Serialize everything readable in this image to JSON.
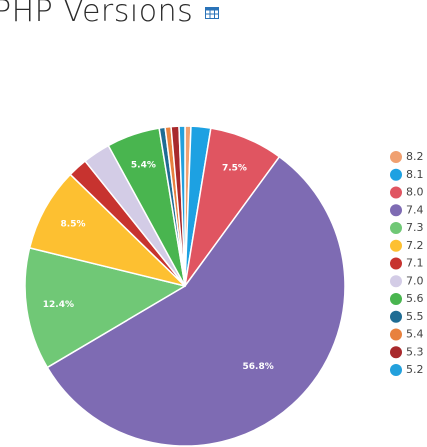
{
  "title": "PHP Versions",
  "chart_data": {
    "type": "pie",
    "start_angle_deg": 0,
    "direction": "clockwise",
    "slices": [
      {
        "label": "8.2",
        "value": 0.6,
        "color": "#f0a070",
        "data_label": ""
      },
      {
        "label": "8.1",
        "value": 2.0,
        "color": "#1da1e2",
        "data_label": ""
      },
      {
        "label": "8.0",
        "value": 7.5,
        "color": "#e05561",
        "data_label": "7.5%"
      },
      {
        "label": "7.4",
        "value": 56.8,
        "color": "#7e6bb3",
        "data_label": "56.8%"
      },
      {
        "label": "7.3",
        "value": 12.4,
        "color": "#70c876",
        "data_label": "12.4%"
      },
      {
        "label": "7.2",
        "value": 8.5,
        "color": "#fdc031",
        "data_label": "8.5%"
      },
      {
        "label": "7.1",
        "value": 2.0,
        "color": "#c7332f",
        "data_label": ""
      },
      {
        "label": "7.0",
        "value": 2.8,
        "color": "#d3cce6",
        "data_label": ""
      },
      {
        "label": "5.6",
        "value": 5.4,
        "color": "#49b54f",
        "data_label": "5.4%"
      },
      {
        "label": "5.5",
        "value": 0.6,
        "color": "#1f6c93",
        "data_label": ""
      },
      {
        "label": "5.4",
        "value": 0.6,
        "color": "#e8813e",
        "data_label": ""
      },
      {
        "label": "5.3",
        "value": 0.8,
        "color": "#a8292c",
        "data_label": ""
      },
      {
        "label": "5.2",
        "value": 0.6,
        "color": "#23a0dc",
        "data_label": ""
      }
    ],
    "legend_position": "right"
  }
}
